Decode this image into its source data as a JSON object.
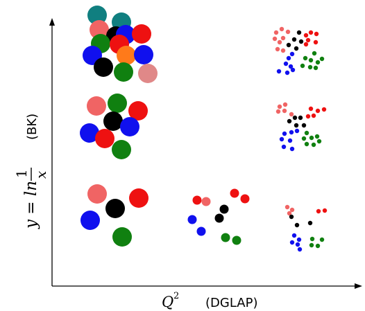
{
  "colors": {
    "red": "#ee1111",
    "lightred": "#f06464",
    "blue": "#1010ee",
    "green": "#108010",
    "black": "#000000",
    "teal": "#107f80",
    "orange": "#ff7a1a",
    "pink": "#e08888"
  },
  "axes": {
    "x_label_var": "Q",
    "x_label_exp": "2",
    "x_label_tag": "(DGLAP)",
    "y_label_lhs": "y = ln",
    "y_label_num": "1",
    "y_label_den": "x",
    "y_label_tag": "(BK)"
  }
}
